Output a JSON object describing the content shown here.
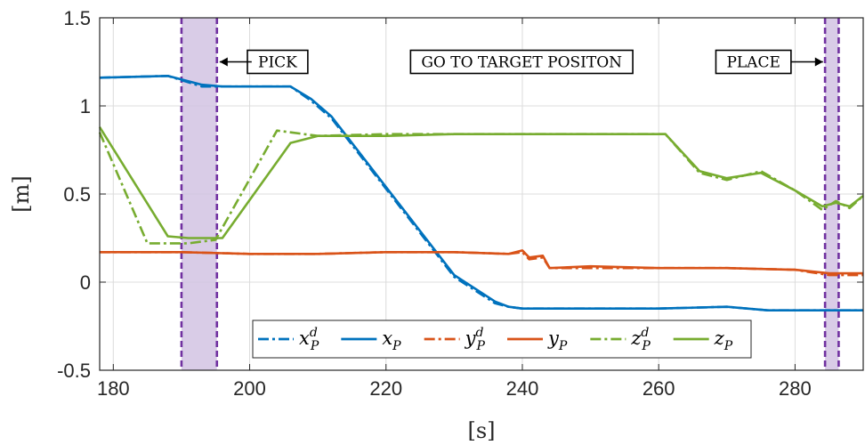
{
  "chart_data": {
    "type": "line",
    "title": "",
    "xlabel": "[s]",
    "ylabel": "[m]",
    "xlim": [
      178,
      290
    ],
    "ylim": [
      -0.5,
      1.5
    ],
    "xticks": [
      180,
      200,
      220,
      240,
      260,
      280
    ],
    "xtick_labels": [
      "180",
      "200",
      "220",
      "240",
      "260",
      "280"
    ],
    "yticks": [
      -0.5,
      0,
      0.5,
      1,
      1.5
    ],
    "ytick_labels": [
      "-0.5",
      "0",
      "0.5",
      "1",
      "1.5"
    ],
    "grid": true,
    "legend_position": "bottom-center",
    "series": [
      {
        "name": "x_P^d",
        "legend_main": "x",
        "legend_sub": "P",
        "legend_sup": "d",
        "color": "#0072BD",
        "dash": "dashdot",
        "x": [
          178,
          188,
          193,
          196,
          206,
          209,
          212,
          218,
          224,
          230,
          236,
          238,
          240,
          250,
          260,
          270,
          276,
          280,
          285,
          290
        ],
        "y": [
          1.16,
          1.17,
          1.11,
          1.11,
          1.11,
          1.03,
          0.93,
          0.63,
          0.33,
          0.03,
          -0.12,
          -0.14,
          -0.15,
          -0.15,
          -0.15,
          -0.14,
          -0.16,
          -0.16,
          -0.16,
          -0.16
        ]
      },
      {
        "name": "x_P",
        "legend_main": "x",
        "legend_sub": "P",
        "legend_sup": "",
        "color": "#0072BD",
        "dash": "solid",
        "x": [
          178,
          188,
          193,
          196,
          206,
          209,
          212,
          218,
          224,
          230,
          236,
          238,
          240,
          250,
          260,
          270,
          276,
          280,
          285,
          290
        ],
        "y": [
          1.16,
          1.17,
          1.12,
          1.11,
          1.11,
          1.04,
          0.94,
          0.64,
          0.34,
          0.04,
          -0.11,
          -0.14,
          -0.15,
          -0.15,
          -0.15,
          -0.14,
          -0.16,
          -0.16,
          -0.16,
          -0.16
        ]
      },
      {
        "name": "y_P^d",
        "legend_main": "y",
        "legend_sub": "P",
        "legend_sup": "d",
        "color": "#D95319",
        "dash": "dashdot",
        "x": [
          178,
          190,
          200,
          210,
          220,
          230,
          238,
          240,
          241,
          243,
          244,
          250,
          260,
          270,
          280,
          285,
          290
        ],
        "y": [
          0.17,
          0.17,
          0.16,
          0.16,
          0.17,
          0.17,
          0.16,
          0.17,
          0.13,
          0.14,
          0.08,
          0.08,
          0.08,
          0.08,
          0.07,
          0.04,
          0.04
        ]
      },
      {
        "name": "y_P",
        "legend_main": "y",
        "legend_sub": "P",
        "legend_sup": "",
        "color": "#D95319",
        "dash": "solid",
        "x": [
          178,
          190,
          200,
          210,
          220,
          230,
          238,
          240,
          241,
          243,
          244,
          250,
          260,
          270,
          280,
          285,
          290
        ],
        "y": [
          0.17,
          0.17,
          0.16,
          0.16,
          0.17,
          0.17,
          0.16,
          0.18,
          0.14,
          0.15,
          0.08,
          0.09,
          0.08,
          0.08,
          0.07,
          0.05,
          0.05
        ]
      },
      {
        "name": "z_P^d",
        "legend_main": "z",
        "legend_sub": "P",
        "legend_sup": "d",
        "color": "#77AC30",
        "dash": "dashdot",
        "x": [
          178,
          185,
          191,
          195,
          204,
          206,
          210,
          220,
          230,
          240,
          250,
          261,
          266,
          270,
          275,
          280,
          284,
          286,
          288,
          290
        ],
        "y": [
          0.85,
          0.22,
          0.22,
          0.24,
          0.86,
          0.85,
          0.83,
          0.84,
          0.84,
          0.84,
          0.84,
          0.84,
          0.62,
          0.58,
          0.63,
          0.52,
          0.41,
          0.46,
          0.42,
          0.49
        ]
      },
      {
        "name": "z_P",
        "legend_main": "z",
        "legend_sub": "P",
        "legend_sup": "",
        "color": "#77AC30",
        "dash": "solid",
        "x": [
          178,
          188,
          191,
          196,
          206,
          210,
          220,
          230,
          240,
          250,
          261,
          266,
          270,
          275,
          280,
          284,
          286,
          288,
          290
        ],
        "y": [
          0.88,
          0.26,
          0.25,
          0.25,
          0.79,
          0.83,
          0.83,
          0.84,
          0.84,
          0.84,
          0.84,
          0.63,
          0.59,
          0.62,
          0.52,
          0.43,
          0.45,
          0.43,
          0.49
        ]
      }
    ],
    "regions": [
      {
        "x0": 190,
        "x1": 195.2,
        "fill": "#D2C3E3",
        "edge": "#7030A0"
      },
      {
        "x0": 284.4,
        "x1": 286.4,
        "fill": "#D2C3E3",
        "edge": "#7030A0"
      }
    ],
    "annotations": [
      {
        "text": "PICK",
        "x": 204.1,
        "y": 1.25,
        "arrow_from": 200.3,
        "arrow_to": 195.6
      },
      {
        "text": "GO TO TARGET POSITON",
        "x": 239.9,
        "y": 1.25
      },
      {
        "text": "PLACE",
        "x": 273.9,
        "y": 1.25,
        "arrow_from": 279.4,
        "arrow_to": 284.1
      }
    ]
  }
}
